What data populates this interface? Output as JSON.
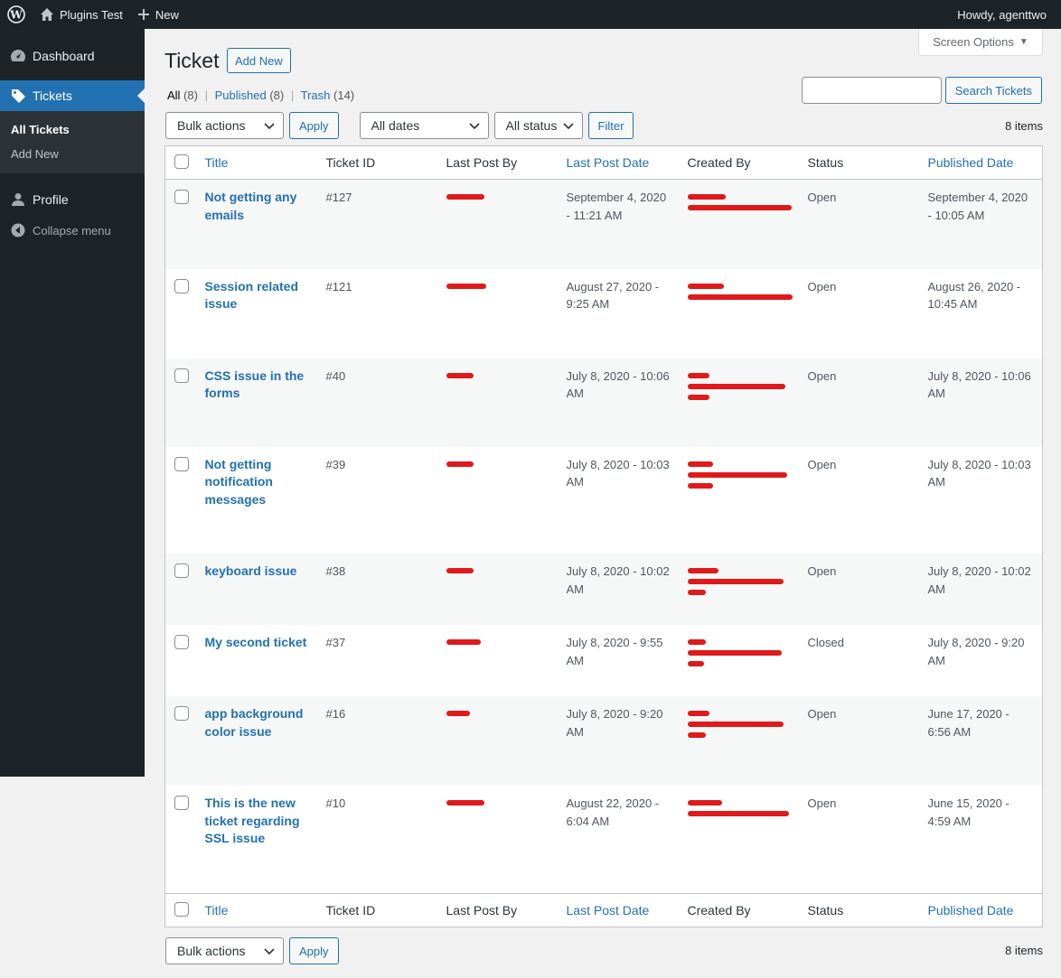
{
  "adminbar": {
    "site_name": "Plugins Test",
    "new_label": "New",
    "howdy": "Howdy, agenttwo"
  },
  "sidebar": {
    "items": [
      {
        "label": "Dashboard",
        "icon": "dashboard-icon"
      },
      {
        "label": "Tickets",
        "icon": "tag-icon",
        "current": true
      },
      {
        "label": "Profile",
        "icon": "user-icon"
      },
      {
        "label": "Collapse menu",
        "icon": "collapse-icon"
      }
    ],
    "submenu": [
      {
        "label": "All Tickets",
        "current": true
      },
      {
        "label": "Add New"
      }
    ]
  },
  "screen_options": "Screen Options",
  "page": {
    "title": "Ticket",
    "add_new": "Add New"
  },
  "views": {
    "all": "All",
    "all_count": "(8)",
    "published": "Published",
    "published_count": "(8)",
    "trash": "Trash",
    "trash_count": "(14)",
    "sep": "|"
  },
  "search": {
    "button": "Search Tickets",
    "value": ""
  },
  "tablenav": {
    "bulk_actions": "Bulk actions",
    "apply": "Apply",
    "dates": "All dates",
    "status": "All status",
    "filter": "Filter",
    "items_count": "8 items"
  },
  "columns": {
    "title": "Title",
    "ticket_id": "Ticket ID",
    "last_post_by": "Last Post By",
    "last_post_date": "Last Post Date",
    "created_by": "Created By",
    "status": "Status",
    "published_date": "Published Date"
  },
  "rows": [
    {
      "title_lines": [
        "Not getting any",
        "emails"
      ],
      "id": "#127",
      "last_post_date": [
        "September 4, 2020",
        "- 11:21 AM"
      ],
      "status": "Open",
      "published": [
        "September 4, 2020",
        "- 10:05 AM"
      ]
    },
    {
      "title_lines": [
        "Session related",
        "issue"
      ],
      "id": "#121",
      "last_post_date": [
        "August 27, 2020 -",
        "9:25 AM"
      ],
      "status": "Open",
      "published": [
        "August 26, 2020 -",
        "10:45 AM"
      ]
    },
    {
      "title_lines": [
        "CSS issue in the",
        "forms"
      ],
      "id": "#40",
      "last_post_date": [
        "July 8, 2020 - 10:06",
        "AM"
      ],
      "status": "Open",
      "published": [
        "July 8, 2020 - 10:06",
        "AM"
      ]
    },
    {
      "title_lines": [
        "Not getting",
        "notification",
        "messages"
      ],
      "id": "#39",
      "last_post_date": [
        "July 8, 2020 - 10:03",
        "AM"
      ],
      "status": "Open",
      "published": [
        "July 8, 2020 - 10:03",
        "AM"
      ]
    },
    {
      "title_lines": [
        "keyboard issue"
      ],
      "id": "#38",
      "last_post_date": [
        "July 8, 2020 - 10:02",
        "AM"
      ],
      "status": "Open",
      "published": [
        "July 8, 2020 - 10:02",
        "AM"
      ]
    },
    {
      "title_lines": [
        "My second ticket"
      ],
      "id": "#37",
      "last_post_date": [
        "July 8, 2020 - 9:55",
        "AM"
      ],
      "status": "Closed",
      "published": [
        "July 8, 2020 - 9:20",
        "AM"
      ]
    },
    {
      "title_lines": [
        "app background",
        "color issue"
      ],
      "id": "#16",
      "last_post_date": [
        "July 8, 2020 - 9:20",
        "AM"
      ],
      "status": "Open",
      "published": [
        "June 17, 2020 -",
        "6:56 AM"
      ]
    },
    {
      "title_lines": [
        "This is the new",
        "ticket regarding",
        "SSL issue"
      ],
      "id": "#10",
      "last_post_date": [
        "August 22, 2020 -",
        "6:04 AM"
      ],
      "status": "Open",
      "published": [
        "June 15, 2020 -",
        "4:59 AM"
      ]
    }
  ]
}
